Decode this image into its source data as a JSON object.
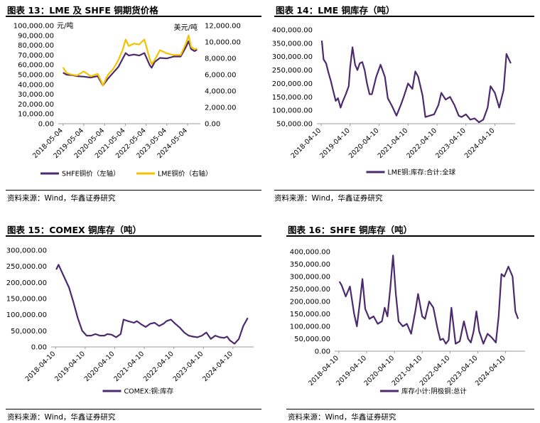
{
  "colors": {
    "purple": "#4b2a6e",
    "yellow": "#f5c200",
    "axis": "#999999"
  },
  "panels": [
    {
      "title": "图表 13：LME 及 SHFE 铜期货价格",
      "source": "资料来源：Wind，华鑫证券研究"
    },
    {
      "title": "图表 14：LME 铜库存（吨）",
      "source": "资料来源：Wind，华鑫证券研究"
    },
    {
      "title": "图表 15：COMEX 铜库存（吨）",
      "source": "资料来源：Wind，华鑫证券研究"
    },
    {
      "title": "图表 16：SHFE 铜库存（吨）",
      "source": "资料来源：Wind，华鑫证券研究"
    }
  ],
  "chart_data": [
    {
      "type": "line",
      "left_unit": "元/吨",
      "right_unit": "美元/吨",
      "y_left_ticks": [
        "0.00",
        "10,000.00",
        "20,000.00",
        "30,000.00",
        "40,000.00",
        "50,000.00",
        "60,000.00",
        "70,000.00",
        "80,000.00",
        "90,000.00",
        "100,000.00"
      ],
      "ylim_left": [
        0,
        100000
      ],
      "y_right_ticks": [
        "0.00",
        "2,000.00",
        "4,000.00",
        "6,000.00",
        "8,000.00",
        "10,000.00",
        "12,000.00"
      ],
      "ylim_right": [
        0,
        12000
      ],
      "x_ticks": [
        "2018-05-04",
        "2019-05-04",
        "2020-05-04",
        "2021-05-04",
        "2022-05-04",
        "2023-05-04",
        "2024-05-04"
      ],
      "legend_position": "bottom",
      "series": [
        {
          "name": "SHFE铜价（左轴）",
          "axis": "left",
          "color": "#4b2a6e",
          "x": [
            2018.33,
            2018.5,
            2018.75,
            2019.0,
            2019.33,
            2019.67,
            2020.0,
            2020.17,
            2020.25,
            2020.5,
            2020.75,
            2021.0,
            2021.2,
            2021.35,
            2021.5,
            2021.75,
            2022.0,
            2022.25,
            2022.5,
            2022.6,
            2022.75,
            2023.0,
            2023.33,
            2023.67,
            2024.0,
            2024.25,
            2024.38,
            2024.5,
            2024.67,
            2024.79
          ],
          "values": [
            52000,
            50000,
            49500,
            48500,
            48000,
            47000,
            48500,
            42000,
            39000,
            46000,
            52000,
            58000,
            66000,
            72000,
            69500,
            70500,
            69500,
            72000,
            60000,
            57000,
            63000,
            67000,
            66500,
            68500,
            68500,
            78000,
            84000,
            76000,
            74000,
            75500
          ]
        },
        {
          "name": "LME铜价（右轴）",
          "axis": "right",
          "color": "#f5c200",
          "x": [
            2018.33,
            2018.5,
            2018.75,
            2019.0,
            2019.33,
            2019.67,
            2020.0,
            2020.17,
            2020.25,
            2020.5,
            2020.75,
            2021.0,
            2021.2,
            2021.35,
            2021.5,
            2021.75,
            2022.0,
            2022.25,
            2022.5,
            2022.6,
            2022.75,
            2023.0,
            2023.33,
            2023.67,
            2024.0,
            2024.25,
            2024.38,
            2024.5,
            2024.67,
            2024.79
          ],
          "values": [
            6900,
            6200,
            6000,
            5900,
            6400,
            5800,
            6100,
            5200,
            4700,
            6000,
            6700,
            7800,
            9000,
            10300,
            9500,
            9800,
            9700,
            10300,
            8000,
            7300,
            7800,
            9000,
            8600,
            8400,
            8400,
            9800,
            10800,
            9400,
            9100,
            9200
          ]
        }
      ]
    },
    {
      "type": "line",
      "y_ticks": [
        "50,000.00",
        "100,000.00",
        "150,000.00",
        "200,000.00",
        "250,000.00",
        "300,000.00",
        "350,000.00",
        "400,000.00"
      ],
      "ylim": [
        50000,
        400000
      ],
      "x_ticks": [
        "2018-04-10",
        "2019-04-10",
        "2020-04-10",
        "2021-04-10",
        "2022-04-10",
        "2023-04-10",
        "2024-04-10"
      ],
      "legend_position": "bottom",
      "series": [
        {
          "name": "LME铜:库存:合计:全球",
          "color": "#4b2a6e",
          "x": [
            2018.27,
            2018.33,
            2018.42,
            2018.5,
            2018.58,
            2018.67,
            2018.75,
            2018.83,
            2018.92,
            2019.0,
            2019.1,
            2019.2,
            2019.25,
            2019.33,
            2019.42,
            2019.5,
            2019.58,
            2019.67,
            2019.75,
            2019.83,
            2019.92,
            2020.0,
            2020.15,
            2020.3,
            2020.45,
            2020.55,
            2020.7,
            2020.85,
            2021.0,
            2021.1,
            2021.25,
            2021.4,
            2021.5,
            2021.6,
            2021.75,
            2021.85,
            2022.0,
            2022.15,
            2022.3,
            2022.4,
            2022.55,
            2022.7,
            2022.85,
            2023.0,
            2023.1,
            2023.25,
            2023.4,
            2023.55,
            2023.7,
            2023.85,
            2024.0,
            2024.1,
            2024.25,
            2024.4,
            2024.55,
            2024.65,
            2024.8
          ],
          "values": [
            360000,
            290000,
            275000,
            240000,
            210000,
            170000,
            135000,
            145000,
            110000,
            135000,
            160000,
            190000,
            260000,
            335000,
            270000,
            250000,
            275000,
            280000,
            250000,
            200000,
            160000,
            160000,
            225000,
            270000,
            225000,
            145000,
            115000,
            80000,
            120000,
            150000,
            200000,
            180000,
            245000,
            225000,
            155000,
            75000,
            80000,
            85000,
            120000,
            165000,
            140000,
            150000,
            120000,
            80000,
            75000,
            85000,
            65000,
            70000,
            55000,
            65000,
            110000,
            190000,
            165000,
            110000,
            175000,
            310000,
            275000
          ]
        }
      ]
    },
    {
      "type": "line",
      "y_ticks": [
        "0.00",
        "50,000.00",
        "100,000.00",
        "150,000.00",
        "200,000.00",
        "250,000.00",
        "300,000.00"
      ],
      "ylim": [
        0,
        300000
      ],
      "x_ticks": [
        "2018-04-10",
        "2019-04-10",
        "2020-04-10",
        "2021-04-10",
        "2022-04-10",
        "2023-04-10",
        "2024-04-10"
      ],
      "legend_position": "bottom",
      "series": [
        {
          "name": "COMEX:铜:库存",
          "color": "#4b2a6e",
          "x": [
            2018.27,
            2018.35,
            2018.5,
            2018.7,
            2018.85,
            2019.0,
            2019.15,
            2019.3,
            2019.45,
            2019.6,
            2019.75,
            2019.9,
            2020.0,
            2020.15,
            2020.3,
            2020.45,
            2020.55,
            2020.7,
            2020.9,
            2021.0,
            2021.15,
            2021.3,
            2021.45,
            2021.6,
            2021.75,
            2021.9,
            2022.0,
            2022.15,
            2022.3,
            2022.45,
            2022.6,
            2022.75,
            2022.9,
            2023.05,
            2023.2,
            2023.35,
            2023.5,
            2023.65,
            2023.8,
            2023.95,
            2024.05,
            2024.15,
            2024.3,
            2024.45,
            2024.6,
            2024.75
          ],
          "values": [
            240000,
            255000,
            225000,
            185000,
            140000,
            90000,
            50000,
            35000,
            35000,
            40000,
            35000,
            35000,
            40000,
            38000,
            30000,
            40000,
            85000,
            80000,
            75000,
            80000,
            70000,
            62000,
            72000,
            75000,
            65000,
            72000,
            80000,
            85000,
            72000,
            60000,
            45000,
            35000,
            32000,
            30000,
            35000,
            45000,
            25000,
            35000,
            30000,
            28000,
            32000,
            20000,
            10000,
            25000,
            65000,
            90000
          ]
        }
      ]
    },
    {
      "type": "line",
      "y_ticks": [
        "0.00",
        "50,000.00",
        "100,000.00",
        "150,000.00",
        "200,000.00",
        "250,000.00",
        "300,000.00",
        "350,000.00",
        "400,000.00"
      ],
      "ylim": [
        0,
        400000
      ],
      "x_ticks": [
        "2018-04-10",
        "2019-04-10",
        "2020-04-10",
        "2021-04-10",
        "2022-04-10",
        "2023-04-10",
        "2024-04-10"
      ],
      "legend_position": "bottom",
      "series": [
        {
          "name": "库存小计:阴极铜:总计",
          "color": "#4b2a6e",
          "x": [
            2018.27,
            2018.35,
            2018.5,
            2018.65,
            2018.8,
            2018.9,
            2019.0,
            2019.1,
            2019.2,
            2019.35,
            2019.5,
            2019.65,
            2019.8,
            2019.9,
            2020.0,
            2020.1,
            2020.2,
            2020.3,
            2020.4,
            2020.55,
            2020.7,
            2020.85,
            2021.0,
            2021.1,
            2021.25,
            2021.35,
            2021.5,
            2021.65,
            2021.8,
            2021.9,
            2022.0,
            2022.1,
            2022.2,
            2022.3,
            2022.45,
            2022.6,
            2022.75,
            2022.9,
            2023.0,
            2023.1,
            2023.2,
            2023.3,
            2023.45,
            2023.6,
            2023.75,
            2023.9,
            2024.0,
            2024.1,
            2024.2,
            2024.35,
            2024.5,
            2024.6,
            2024.7
          ],
          "values": [
            280000,
            265000,
            220000,
            260000,
            150000,
            100000,
            190000,
            290000,
            170000,
            130000,
            140000,
            110000,
            120000,
            175000,
            140000,
            250000,
            385000,
            230000,
            120000,
            100000,
            110000,
            70000,
            160000,
            230000,
            140000,
            130000,
            200000,
            175000,
            90000,
            45000,
            50000,
            30000,
            45000,
            175000,
            30000,
            40000,
            120000,
            50000,
            35000,
            80000,
            160000,
            80000,
            30000,
            70000,
            55000,
            35000,
            140000,
            310000,
            300000,
            340000,
            300000,
            160000,
            130000
          ]
        }
      ]
    }
  ]
}
